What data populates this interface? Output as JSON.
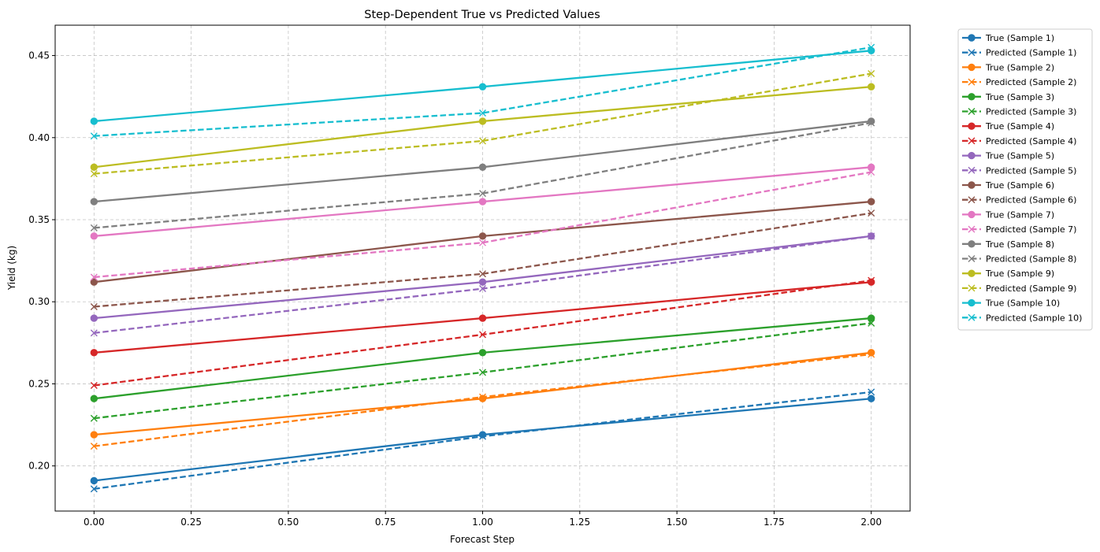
{
  "chart_data": {
    "type": "line",
    "title": "Step-Dependent True vs Predicted Values",
    "xlabel": "Forecast Step",
    "ylabel": "Yield (kg)",
    "x": [
      0,
      1,
      2
    ],
    "xlim": [
      -0.1,
      2.1
    ],
    "ylim": [
      0.1725,
      0.4685
    ],
    "xticks": [
      0.0,
      0.25,
      0.5,
      0.75,
      1.0,
      1.25,
      1.5,
      1.75,
      2.0
    ],
    "xtick_labels": [
      "0.00",
      "0.25",
      "0.50",
      "0.75",
      "1.00",
      "1.25",
      "1.50",
      "1.75",
      "2.00"
    ],
    "yticks": [
      0.2,
      0.25,
      0.3,
      0.35,
      0.4,
      0.45
    ],
    "ytick_labels": [
      "0.20",
      "0.25",
      "0.30",
      "0.35",
      "0.40",
      "0.45"
    ],
    "grid": true,
    "legend_position": "outside-right-top",
    "series": [
      {
        "name": "True (Sample 1)",
        "color": "#1f77b4",
        "style": "solid",
        "marker": "circle",
        "values": [
          0.191,
          0.219,
          0.241
        ]
      },
      {
        "name": "Predicted (Sample 1)",
        "color": "#1f77b4",
        "style": "dashed",
        "marker": "x",
        "values": [
          0.186,
          0.218,
          0.245
        ]
      },
      {
        "name": "True (Sample 2)",
        "color": "#ff7f0e",
        "style": "solid",
        "marker": "circle",
        "values": [
          0.219,
          0.241,
          0.269
        ]
      },
      {
        "name": "Predicted (Sample 2)",
        "color": "#ff7f0e",
        "style": "dashed",
        "marker": "x",
        "values": [
          0.212,
          0.242,
          0.268
        ]
      },
      {
        "name": "True (Sample 3)",
        "color": "#2ca02c",
        "style": "solid",
        "marker": "circle",
        "values": [
          0.241,
          0.269,
          0.29
        ]
      },
      {
        "name": "Predicted (Sample 3)",
        "color": "#2ca02c",
        "style": "dashed",
        "marker": "x",
        "values": [
          0.229,
          0.257,
          0.287
        ]
      },
      {
        "name": "True (Sample 4)",
        "color": "#d62728",
        "style": "solid",
        "marker": "circle",
        "values": [
          0.269,
          0.29,
          0.312
        ]
      },
      {
        "name": "Predicted (Sample 4)",
        "color": "#d62728",
        "style": "dashed",
        "marker": "x",
        "values": [
          0.249,
          0.28,
          0.313
        ]
      },
      {
        "name": "True (Sample 5)",
        "color": "#9467bd",
        "style": "solid",
        "marker": "circle",
        "values": [
          0.29,
          0.312,
          0.34
        ]
      },
      {
        "name": "Predicted (Sample 5)",
        "color": "#9467bd",
        "style": "dashed",
        "marker": "x",
        "values": [
          0.281,
          0.308,
          0.34
        ]
      },
      {
        "name": "True (Sample 6)",
        "color": "#8c564b",
        "style": "solid",
        "marker": "circle",
        "values": [
          0.312,
          0.34,
          0.361
        ]
      },
      {
        "name": "Predicted (Sample 6)",
        "color": "#8c564b",
        "style": "dashed",
        "marker": "x",
        "values": [
          0.297,
          0.317,
          0.354
        ]
      },
      {
        "name": "True (Sample 7)",
        "color": "#e377c2",
        "style": "solid",
        "marker": "circle",
        "values": [
          0.34,
          0.361,
          0.382
        ]
      },
      {
        "name": "Predicted (Sample 7)",
        "color": "#e377c2",
        "style": "dashed",
        "marker": "x",
        "values": [
          0.315,
          0.336,
          0.379
        ]
      },
      {
        "name": "True (Sample 8)",
        "color": "#7f7f7f",
        "style": "solid",
        "marker": "circle",
        "values": [
          0.361,
          0.382,
          0.41
        ]
      },
      {
        "name": "Predicted (Sample 8)",
        "color": "#7f7f7f",
        "style": "dashed",
        "marker": "x",
        "values": [
          0.345,
          0.366,
          0.409
        ]
      },
      {
        "name": "True (Sample 9)",
        "color": "#bcbd22",
        "style": "solid",
        "marker": "circle",
        "values": [
          0.382,
          0.41,
          0.431
        ]
      },
      {
        "name": "Predicted (Sample 9)",
        "color": "#bcbd22",
        "style": "dashed",
        "marker": "x",
        "values": [
          0.378,
          0.398,
          0.439
        ]
      },
      {
        "name": "True (Sample 10)",
        "color": "#17becf",
        "style": "solid",
        "marker": "circle",
        "values": [
          0.41,
          0.431,
          0.453
        ]
      },
      {
        "name": "Predicted (Sample 10)",
        "color": "#17becf",
        "style": "dashed",
        "marker": "x",
        "values": [
          0.401,
          0.415,
          0.455
        ]
      }
    ]
  }
}
